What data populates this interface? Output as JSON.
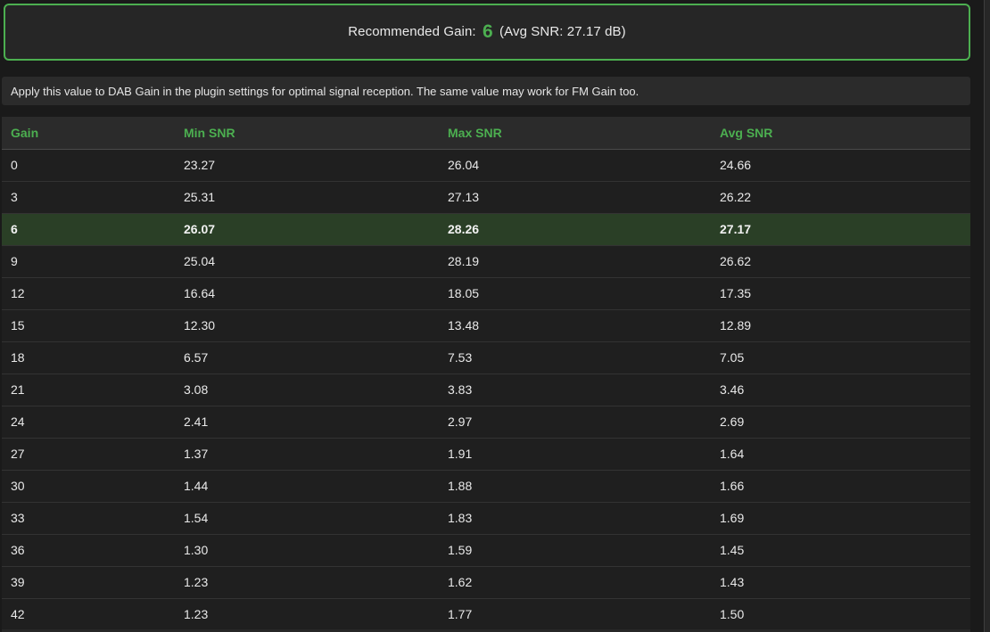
{
  "recommendation": {
    "label": "Recommended Gain:",
    "value": "6",
    "suffix": "(Avg SNR: 27.17 dB)"
  },
  "note": {
    "text": "Apply this value to DAB Gain in the plugin settings for optimal signal reception. The same value may work for FM Gain too."
  },
  "table": {
    "columns": [
      "Gain",
      "Min SNR",
      "Max SNR",
      "Avg SNR"
    ],
    "rows": [
      {
        "gain": "0",
        "min": "23.27",
        "max": "26.04",
        "avg": "24.66",
        "highlight": false
      },
      {
        "gain": "3",
        "min": "25.31",
        "max": "27.13",
        "avg": "26.22",
        "highlight": false
      },
      {
        "gain": "6",
        "min": "26.07",
        "max": "28.26",
        "avg": "27.17",
        "highlight": true
      },
      {
        "gain": "9",
        "min": "25.04",
        "max": "28.19",
        "avg": "26.62",
        "highlight": false
      },
      {
        "gain": "12",
        "min": "16.64",
        "max": "18.05",
        "avg": "17.35",
        "highlight": false
      },
      {
        "gain": "15",
        "min": "12.30",
        "max": "13.48",
        "avg": "12.89",
        "highlight": false
      },
      {
        "gain": "18",
        "min": "6.57",
        "max": "7.53",
        "avg": "7.05",
        "highlight": false
      },
      {
        "gain": "21",
        "min": "3.08",
        "max": "3.83",
        "avg": "3.46",
        "highlight": false
      },
      {
        "gain": "24",
        "min": "2.41",
        "max": "2.97",
        "avg": "2.69",
        "highlight": false
      },
      {
        "gain": "27",
        "min": "1.37",
        "max": "1.91",
        "avg": "1.64",
        "highlight": false
      },
      {
        "gain": "30",
        "min": "1.44",
        "max": "1.88",
        "avg": "1.66",
        "highlight": false
      },
      {
        "gain": "33",
        "min": "1.54",
        "max": "1.83",
        "avg": "1.69",
        "highlight": false
      },
      {
        "gain": "36",
        "min": "1.30",
        "max": "1.59",
        "avg": "1.45",
        "highlight": false
      },
      {
        "gain": "39",
        "min": "1.23",
        "max": "1.62",
        "avg": "1.43",
        "highlight": false
      },
      {
        "gain": "42",
        "min": "1.23",
        "max": "1.77",
        "avg": "1.50",
        "highlight": false
      }
    ],
    "highlighted_gain": "6"
  },
  "colors": {
    "accent_green": "#4caf50",
    "highlight_row_bg": "#2a3f26",
    "page_bg": "#1a1a1a",
    "panel_bg": "#2b2b2b"
  }
}
